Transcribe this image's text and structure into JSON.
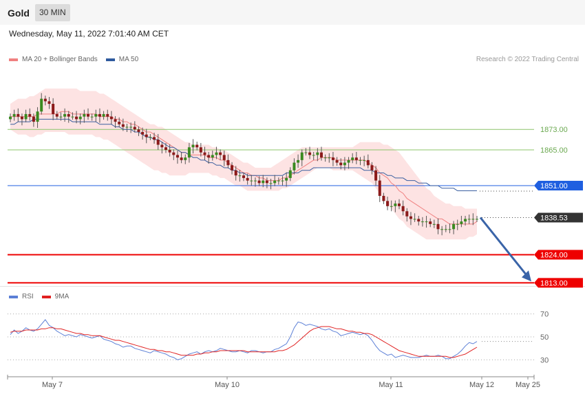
{
  "header": {
    "symbol": "Gold",
    "timeframe": "30 MIN"
  },
  "datetime": "Wednesday, May 11, 2022 7:01:40 AM CET",
  "legend_main": [
    {
      "label": "MA 20 + Bollinger Bands",
      "color": "#f08080"
    },
    {
      "label": "MA 50",
      "color": "#2e5a9e"
    }
  ],
  "legend_rsi": [
    {
      "label": "RSI",
      "color": "#5b7fd6"
    },
    {
      "label": "9MA",
      "color": "#e02020"
    }
  ],
  "credit": "Research © 2022 Trading Central",
  "x_ticks": [
    "May 7",
    "May 10",
    "May 11",
    "May 12",
    "May 25"
  ],
  "chart_data": [
    {
      "type": "candlestick",
      "title": "Gold 30 MIN",
      "ylim": [
        1808,
        1890
      ],
      "levels": [
        {
          "value": 1873.0,
          "label": "1873.00",
          "color": "#8cc46a",
          "style": "thin"
        },
        {
          "value": 1865.0,
          "label": "1865.00",
          "color": "#8cc46a",
          "style": "thin"
        },
        {
          "value": 1851.0,
          "label": "1851.00",
          "color": "#1f5fe0",
          "style": "thin"
        },
        {
          "value": 1838.53,
          "label": "1838.53",
          "color": "#333333",
          "style": "price"
        },
        {
          "value": 1824.0,
          "label": "1824.00",
          "color": "#ee0000",
          "style": "thick"
        },
        {
          "value": 1813.0,
          "label": "1813.00",
          "color": "#ee0000",
          "style": "thick"
        }
      ],
      "close": [
        1878,
        1879,
        1878,
        1877,
        1879,
        1878,
        1876,
        1880,
        1885,
        1884,
        1883,
        1879,
        1878,
        1878,
        1879,
        1878,
        1878,
        1877,
        1878,
        1879,
        1878,
        1878,
        1879,
        1878,
        1879,
        1878,
        1877,
        1876,
        1875,
        1874,
        1874,
        1874,
        1873,
        1872,
        1871,
        1870,
        1870,
        1869,
        1867,
        1866,
        1865,
        1864,
        1863,
        1862,
        1861,
        1862,
        1866,
        1867,
        1866,
        1864,
        1863,
        1862,
        1863,
        1864,
        1863,
        1861,
        1859,
        1857,
        1855,
        1855,
        1854,
        1853,
        1853,
        1853,
        1852,
        1853,
        1852,
        1852,
        1853,
        1853,
        1853,
        1854,
        1857,
        1860,
        1861,
        1864,
        1864,
        1863,
        1863,
        1864,
        1862,
        1862,
        1862,
        1861,
        1860,
        1859,
        1860,
        1861,
        1862,
        1861,
        1861,
        1861,
        1859,
        1857,
        1853,
        1847,
        1845,
        1843,
        1843,
        1844,
        1843,
        1841,
        1839,
        1838,
        1838,
        1837,
        1837,
        1837,
        1836,
        1836,
        1834,
        1834,
        1834,
        1834,
        1836,
        1836,
        1837,
        1838,
        1838,
        1838,
        1838
      ],
      "ma20": [
        1878,
        1878,
        1878,
        1878,
        1878,
        1878,
        1878,
        1879,
        1879,
        1879,
        1879,
        1879,
        1879,
        1880,
        1880,
        1880,
        1879,
        1879,
        1879,
        1879,
        1879,
        1879,
        1879,
        1878,
        1878,
        1878,
        1878,
        1877,
        1877,
        1876,
        1876,
        1875,
        1875,
        1874,
        1873,
        1872,
        1872,
        1871,
        1870,
        1869,
        1868,
        1867,
        1866,
        1865,
        1864,
        1864,
        1863,
        1863,
        1863,
        1863,
        1863,
        1862,
        1862,
        1862,
        1861,
        1861,
        1860,
        1859,
        1858,
        1857,
        1856,
        1856,
        1855,
        1855,
        1854,
        1854,
        1853,
        1853,
        1853,
        1853,
        1854,
        1854,
        1855,
        1856,
        1857,
        1858,
        1859,
        1860,
        1861,
        1861,
        1862,
        1862,
        1862,
        1862,
        1861,
        1861,
        1861,
        1861,
        1861,
        1861,
        1861,
        1861,
        1860,
        1859,
        1858,
        1856,
        1855,
        1854,
        1852,
        1851,
        1849,
        1848,
        1846,
        1845,
        1844,
        1843,
        1842,
        1841,
        1840,
        1839,
        1838,
        1838,
        1837,
        1836,
        1836,
        1836,
        1836,
        1836,
        1836,
        1836,
        1837
      ],
      "bb_upper": [
        1883,
        1884,
        1885,
        1885,
        1885,
        1886,
        1886,
        1887,
        1888,
        1889,
        1889,
        1889,
        1889,
        1889,
        1889,
        1889,
        1889,
        1889,
        1888,
        1888,
        1888,
        1888,
        1888,
        1887,
        1887,
        1886,
        1885,
        1884,
        1883,
        1882,
        1881,
        1880,
        1879,
        1878,
        1877,
        1876,
        1875,
        1875,
        1874,
        1874,
        1873,
        1872,
        1871,
        1870,
        1869,
        1868,
        1868,
        1867,
        1867,
        1867,
        1867,
        1867,
        1866,
        1866,
        1865,
        1865,
        1864,
        1863,
        1862,
        1861,
        1860,
        1860,
        1859,
        1858,
        1858,
        1858,
        1858,
        1858,
        1859,
        1860,
        1861,
        1862,
        1863,
        1864,
        1865,
        1866,
        1866,
        1866,
        1866,
        1866,
        1866,
        1866,
        1866,
        1866,
        1866,
        1866,
        1866,
        1866,
        1866,
        1867,
        1868,
        1868,
        1868,
        1868,
        1868,
        1868,
        1867,
        1867,
        1866,
        1865,
        1864,
        1862,
        1860,
        1858,
        1856,
        1854,
        1852,
        1850,
        1849,
        1847,
        1846,
        1845,
        1844,
        1844,
        1843,
        1843,
        1843,
        1842,
        1842,
        1842,
        1842
      ],
      "bb_lower": [
        1873,
        1872,
        1871,
        1871,
        1871,
        1870,
        1870,
        1871,
        1871,
        1872,
        1872,
        1872,
        1872,
        1872,
        1872,
        1871,
        1871,
        1871,
        1871,
        1871,
        1871,
        1871,
        1870,
        1870,
        1869,
        1869,
        1868,
        1867,
        1866,
        1865,
        1864,
        1863,
        1862,
        1861,
        1860,
        1859,
        1858,
        1857,
        1857,
        1856,
        1856,
        1855,
        1855,
        1855,
        1855,
        1855,
        1856,
        1856,
        1856,
        1856,
        1856,
        1856,
        1855,
        1855,
        1854,
        1854,
        1853,
        1852,
        1851,
        1851,
        1850,
        1849,
        1849,
        1849,
        1849,
        1849,
        1849,
        1849,
        1849,
        1849,
        1850,
        1850,
        1851,
        1852,
        1853,
        1854,
        1855,
        1856,
        1857,
        1858,
        1858,
        1858,
        1858,
        1857,
        1857,
        1857,
        1857,
        1857,
        1857,
        1856,
        1855,
        1854,
        1853,
        1852,
        1850,
        1848,
        1846,
        1844,
        1842,
        1840,
        1838,
        1837,
        1835,
        1834,
        1833,
        1832,
        1831,
        1830,
        1830,
        1830,
        1830,
        1830,
        1830,
        1830,
        1830,
        1830,
        1830,
        1830,
        1831,
        1831,
        1832
      ],
      "ma50": [
        1875,
        1875,
        1876,
        1876,
        1876,
        1876,
        1877,
        1877,
        1877,
        1877,
        1877,
        1877,
        1877,
        1877,
        1877,
        1877,
        1876,
        1876,
        1876,
        1876,
        1876,
        1876,
        1876,
        1875,
        1875,
        1875,
        1875,
        1874,
        1874,
        1873,
        1873,
        1873,
        1872,
        1872,
        1871,
        1870,
        1870,
        1869,
        1869,
        1868,
        1867,
        1866,
        1866,
        1865,
        1864,
        1864,
        1863,
        1862,
        1862,
        1861,
        1861,
        1860,
        1860,
        1859,
        1859,
        1858,
        1858,
        1857,
        1857,
        1856,
        1856,
        1855,
        1855,
        1855,
        1855,
        1855,
        1855,
        1855,
        1855,
        1855,
        1855,
        1856,
        1856,
        1856,
        1856,
        1857,
        1857,
        1857,
        1858,
        1858,
        1858,
        1858,
        1858,
        1858,
        1858,
        1858,
        1858,
        1858,
        1858,
        1858,
        1858,
        1857,
        1857,
        1857,
        1856,
        1856,
        1856,
        1855,
        1855,
        1854,
        1854,
        1854,
        1853,
        1853,
        1853,
        1852,
        1852,
        1852,
        1851,
        1851,
        1851,
        1850,
        1850,
        1850,
        1850,
        1849,
        1849,
        1849,
        1849,
        1849,
        1849
      ],
      "forecast_arrow": {
        "from": 1838.53,
        "to": 1813.0
      }
    },
    {
      "type": "line",
      "title": "RSI",
      "ylim": [
        20,
        80
      ],
      "reference_lines": [
        70,
        50,
        30
      ],
      "series": [
        {
          "name": "RSI",
          "color": "#5b7fd6",
          "values": [
            52,
            56,
            53,
            55,
            58,
            56,
            55,
            57,
            61,
            65,
            60,
            58,
            55,
            53,
            51,
            52,
            51,
            50,
            52,
            51,
            50,
            49,
            50,
            51,
            48,
            47,
            46,
            44,
            43,
            41,
            42,
            42,
            40,
            39,
            38,
            37,
            36,
            38,
            37,
            36,
            35,
            33,
            32,
            30,
            31,
            33,
            35,
            36,
            37,
            35,
            37,
            38,
            37,
            38,
            40,
            39,
            38,
            37,
            37,
            38,
            37,
            36,
            38,
            38,
            37,
            36,
            37,
            37,
            39,
            40,
            42,
            44,
            50,
            58,
            63,
            62,
            60,
            61,
            60,
            59,
            57,
            56,
            57,
            55,
            54,
            51,
            52,
            53,
            54,
            53,
            52,
            53,
            51,
            47,
            42,
            38,
            36,
            34,
            35,
            32,
            33,
            34,
            33,
            32,
            32,
            32,
            33,
            34,
            33,
            33,
            34,
            33,
            31,
            31,
            33,
            35,
            38,
            42,
            45,
            44,
            46
          ]
        },
        {
          "name": "9MA",
          "color": "#e02020",
          "values": [
            54,
            55,
            55,
            55,
            56,
            56,
            56,
            56,
            57,
            57,
            58,
            58,
            57,
            57,
            56,
            55,
            54,
            53,
            53,
            52,
            52,
            51,
            51,
            51,
            50,
            49,
            48,
            47,
            47,
            46,
            45,
            44,
            43,
            42,
            41,
            40,
            39,
            39,
            38,
            38,
            37,
            37,
            36,
            35,
            34,
            34,
            34,
            34,
            35,
            35,
            36,
            36,
            37,
            37,
            38,
            38,
            38,
            38,
            38,
            38,
            38,
            37,
            37,
            37,
            37,
            37,
            37,
            37,
            37,
            38,
            38,
            39,
            41,
            43,
            46,
            49,
            52,
            55,
            57,
            58,
            59,
            59,
            59,
            58,
            57,
            57,
            56,
            55,
            55,
            54,
            54,
            53,
            53,
            52,
            50,
            48,
            46,
            44,
            42,
            40,
            38,
            37,
            36,
            35,
            34,
            33,
            33,
            33,
            33,
            33,
            33,
            33,
            33,
            32,
            32,
            33,
            34,
            35,
            37,
            39,
            41
          ]
        }
      ]
    }
  ]
}
